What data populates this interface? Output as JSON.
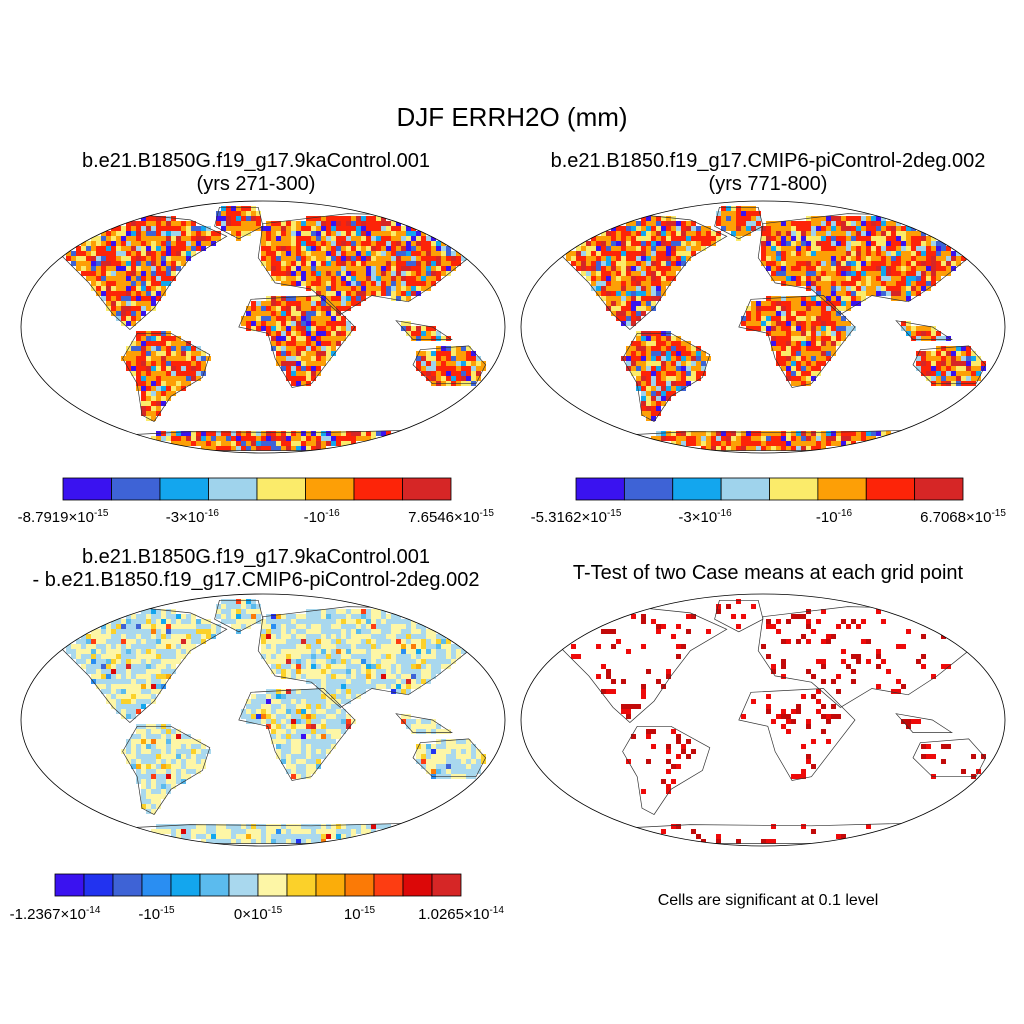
{
  "figure": {
    "title": "DJF ERRH2O (mm)",
    "note": "Cells are significant at 0.1 level"
  },
  "panels": [
    {
      "id": "case1",
      "title_line1": "b.e21.B1850G.f19_g17.9kaControl.001",
      "title_line2": "(yrs 271-300)",
      "colorbar": {
        "colors": [
          "#3a12f0",
          "#3e63d6",
          "#13a6ee",
          "#9fd3ec",
          "#fbeb6a",
          "#fd9f06",
          "#fd2408",
          "#d62626"
        ],
        "labels": [
          {
            "base": "-8.7919×10",
            "exp": "-15"
          },
          {
            "base": "-3×10",
            "exp": "-16"
          },
          {
            "base": "-10",
            "exp": "-16"
          },
          {
            "base": "7.6546×10",
            "exp": "-15"
          }
        ]
      }
    },
    {
      "id": "case2",
      "title_line1": "b.e21.B1850.f19_g17.CMIP6-piControl-2deg.002",
      "title_line2": "(yrs 771-800)",
      "colorbar": {
        "colors": [
          "#3a12f0",
          "#3e63d6",
          "#13a6ee",
          "#9fd3ec",
          "#fbeb6a",
          "#fd9f06",
          "#fd2408",
          "#d62626"
        ],
        "labels": [
          {
            "base": "-5.3162×10",
            "exp": "-15"
          },
          {
            "base": "-3×10",
            "exp": "-16"
          },
          {
            "base": "-10",
            "exp": "-16"
          },
          {
            "base": "6.7068×10",
            "exp": "-15"
          }
        ]
      }
    },
    {
      "id": "diff",
      "title_line1": "b.e21.B1850G.f19_g17.9kaControl.001",
      "title_line2": "- b.e21.B1850.f19_g17.CMIP6-piControl-2deg.002",
      "colorbar": {
        "colors": [
          "#3a12f0",
          "#2233f0",
          "#3e63d6",
          "#2a8ef2",
          "#13a6ee",
          "#5bbbee",
          "#a9d8ee",
          "#fdf6a6",
          "#fbd12a",
          "#fbad0a",
          "#fb7a06",
          "#fd3d12",
          "#dc0808",
          "#d62626"
        ],
        "labels": [
          {
            "base": "-1.2367×10",
            "exp": "-14"
          },
          {
            "base": "-10",
            "exp": "-15"
          },
          {
            "base": "0×10",
            "exp": "-15"
          },
          {
            "base": "10",
            "exp": "-15"
          },
          {
            "base": "1.0265×10",
            "exp": "-14"
          }
        ]
      }
    },
    {
      "id": "ttest",
      "title_line1": "T-Test of two Case means at each grid point",
      "title_line2": ""
    }
  ]
}
